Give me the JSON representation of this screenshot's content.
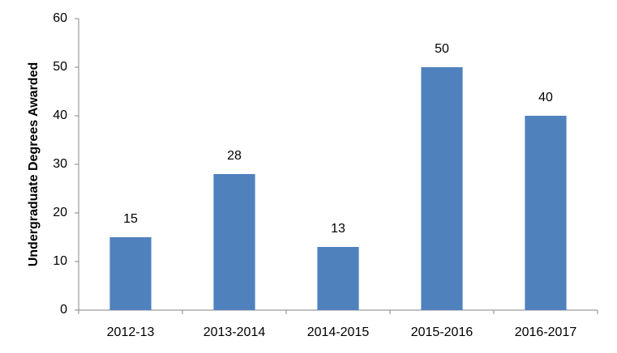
{
  "chart_data": {
    "type": "bar",
    "y_label": "Undergraduate Degrees Awarded",
    "categories": [
      "2012-13",
      "2013-2014",
      "2014-2015",
      "2015-2016",
      "2016-2017"
    ],
    "values": [
      15,
      28,
      13,
      50,
      40
    ],
    "color": "#4f81bd",
    "ylim": [
      0,
      60
    ],
    "yticks": [
      0,
      10,
      20,
      30,
      40,
      50,
      60
    ],
    "grid": false,
    "data_labels": true
  }
}
